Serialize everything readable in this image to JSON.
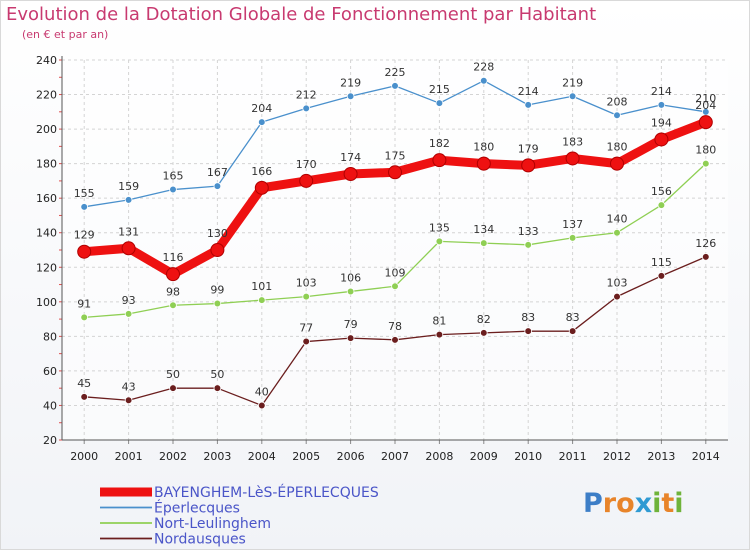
{
  "title": "Evolution de la Dotation Globale de Fonctionnement par Habitant",
  "subtitle": "(en € et par an)",
  "logo": {
    "letters": [
      "P",
      "r",
      "o",
      "x",
      "i",
      "t",
      "i"
    ],
    "colors": [
      "#3d7ec7",
      "#e8842a",
      "#e8842a",
      "#2f9ad3",
      "#6fb33a",
      "#e8842a",
      "#6fb33a"
    ]
  },
  "chart_data": {
    "type": "line",
    "x": [
      "2000",
      "2001",
      "2002",
      "2003",
      "2004",
      "2005",
      "2006",
      "2007",
      "2008",
      "2009",
      "2010",
      "2011",
      "2012",
      "2013",
      "2014"
    ],
    "ylim": [
      20,
      240
    ],
    "yticks": [
      20,
      40,
      60,
      80,
      100,
      120,
      140,
      160,
      180,
      200,
      220,
      240
    ],
    "grid": true,
    "legend_position": "bottom-left",
    "series": [
      {
        "name": "BAYENGHEM-LèS-ÉPERLECQUES",
        "color": "#ee1111",
        "values": [
          129,
          131,
          116,
          130,
          166,
          170,
          174,
          175,
          182,
          180,
          179,
          183,
          180,
          194,
          204
        ]
      },
      {
        "name": "Éperlecques",
        "color": "#4a90cc",
        "values": [
          155,
          159,
          165,
          167,
          204,
          212,
          219,
          225,
          215,
          228,
          214,
          219,
          208,
          214,
          210
        ]
      },
      {
        "name": "Nort-Leulinghem",
        "color": "#8fcf54",
        "values": [
          91,
          93,
          98,
          99,
          101,
          103,
          106,
          109,
          135,
          134,
          133,
          137,
          140,
          156,
          180
        ]
      },
      {
        "name": "Nordausques",
        "color": "#6b1e1e",
        "values": [
          45,
          43,
          50,
          50,
          40,
          77,
          79,
          78,
          81,
          82,
          83,
          83,
          103,
          115,
          126
        ]
      }
    ]
  }
}
